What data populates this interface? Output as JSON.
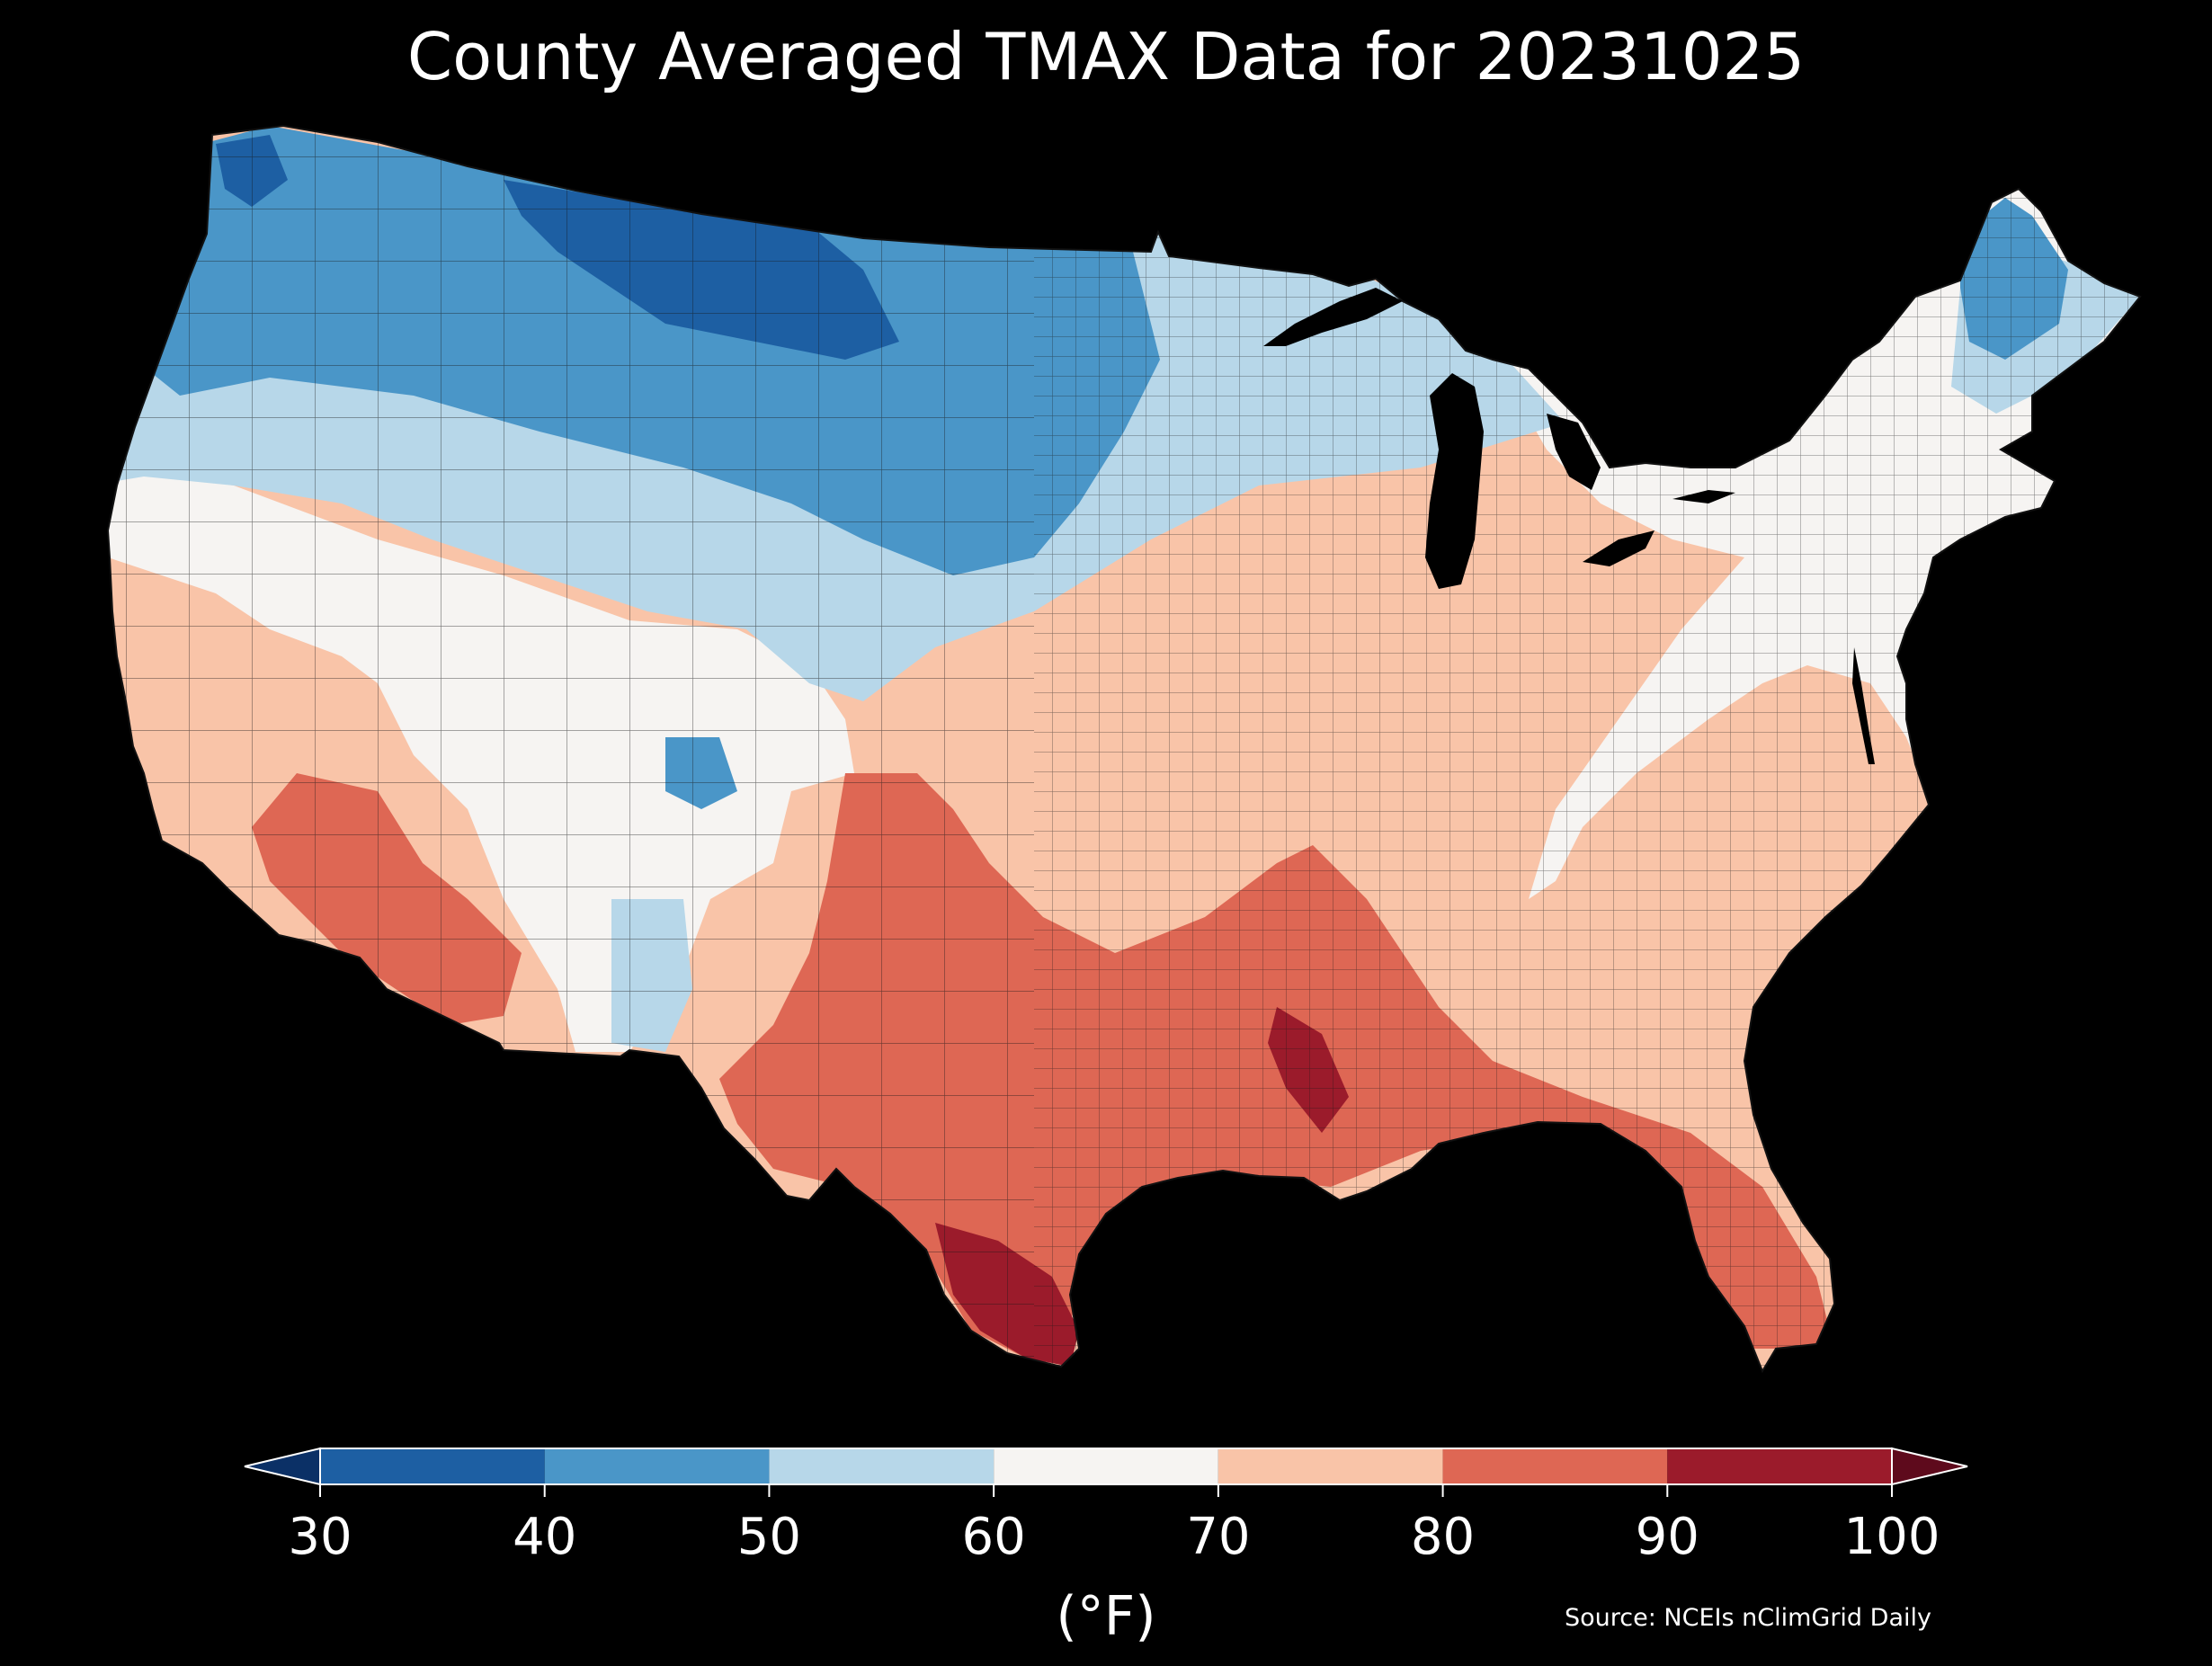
{
  "title": "County Averaged TMAX Data for 20231025",
  "colorbar": {
    "ticks": [
      "30",
      "40",
      "50",
      "60",
      "70",
      "80",
      "90",
      "100"
    ],
    "bins": [
      {
        "range": [
          30,
          40
        ],
        "color": "#1d5fa3"
      },
      {
        "range": [
          40,
          50
        ],
        "color": "#4a96c8"
      },
      {
        "range": [
          50,
          60
        ],
        "color": "#b7d7e9"
      },
      {
        "range": [
          60,
          70
        ],
        "color": "#f6f4f2"
      },
      {
        "range": [
          70,
          80
        ],
        "color": "#f9c4a8"
      },
      {
        "range": [
          80,
          90
        ],
        "color": "#de6754"
      },
      {
        "range": [
          90,
          100
        ],
        "color": "#9b1b2b"
      }
    ],
    "under_color": "#0b3066",
    "over_color": "#5e0a1c",
    "label": "(°F)"
  },
  "source": "Source: NCEIs nClimGrid Daily",
  "colors": {
    "background": "#000000",
    "text": "#ffffff",
    "county_border": "#1a1a1a"
  }
}
